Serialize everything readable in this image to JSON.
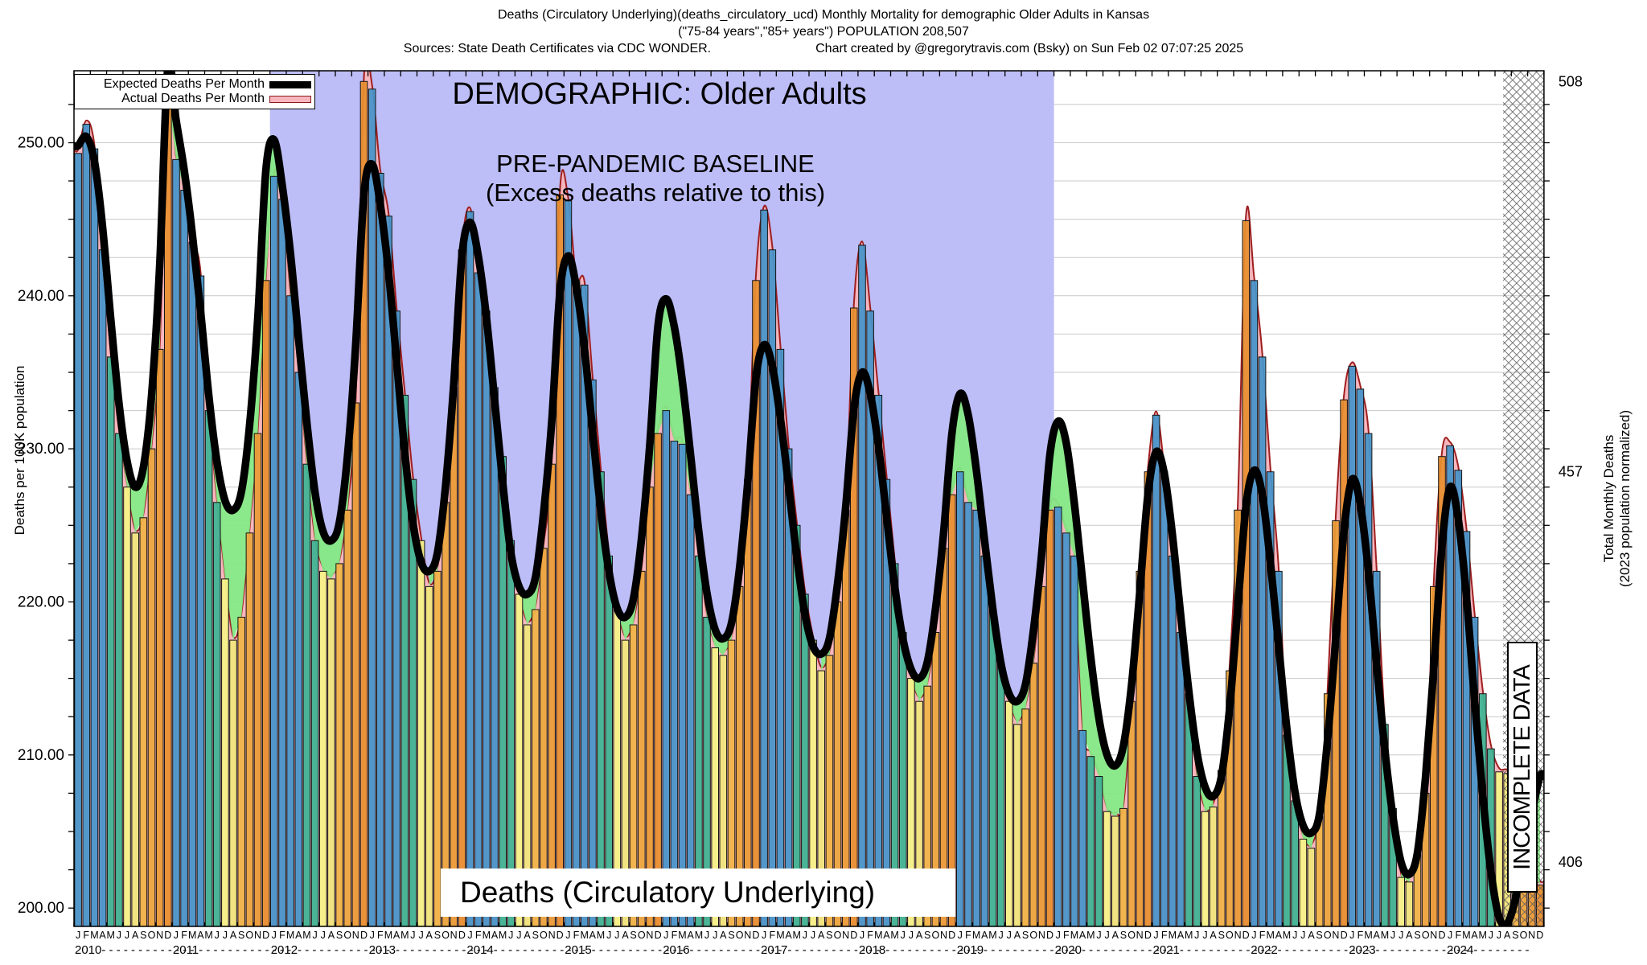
{
  "header": {
    "title_line1": "Deaths (Circulatory Underlying)(deaths_circulatory_ucd) Monthly Mortality for demographic Older Adults in Kansas",
    "title_line2": "(\"75-84 years\",\"85+ years\") POPULATION 208,507",
    "sources": "Sources: State Death Certificates via CDC WONDER.",
    "credit": "Chart created by @gregorytravis.com (Bsky) on Sun Feb 02 07:07:25 2025"
  },
  "legend": {
    "expected_label": "Expected Deaths Per Month",
    "actual_label": "Actual Deaths Per Month"
  },
  "annotations": {
    "demographic": "DEMOGRAPHIC: Older Adults",
    "baseline_title": "PRE-PANDEMIC BASELINE",
    "baseline_sub": "(Excess deaths relative to this)",
    "bottom_label": "Deaths (Circulatory Underlying)",
    "incomplete_label": "INCOMPLETE DATA"
  },
  "chart_data": {
    "type": "bar",
    "title": "Deaths (Circulatory Underlying) Monthly Mortality, Older Adults, Kansas",
    "ylabel": "Deaths per 100K population",
    "y2label_line1": "Total Monthly Deaths",
    "y2label_line2": "(2023 population normalized)",
    "ylim": [
      198.8,
      254.7
    ],
    "grid_step": 2.5,
    "y_ticks": [
      {
        "label": "250.00",
        "value": 250
      },
      {
        "label": "240.00",
        "value": 240
      },
      {
        "label": "230.00",
        "value": 230
      },
      {
        "label": "220.00",
        "value": 220
      },
      {
        "label": "210.00",
        "value": 210
      },
      {
        "label": "200.00",
        "value": 200
      }
    ],
    "y2_ticks": [
      {
        "label": "508",
        "value_left_axis": 254.0
      },
      {
        "label": "457",
        "value_left_axis": 228.5
      },
      {
        "label": "406",
        "value_left_axis": 203.0
      }
    ],
    "month_letters": "JFMAMJJASOND",
    "years": [
      2010,
      2011,
      2012,
      2013,
      2014,
      2015,
      2016,
      2017,
      2018,
      2019,
      2020,
      2021,
      2022,
      2023,
      2024
    ],
    "baseline_region": {
      "start_month_index": 24,
      "end_month_index": 120,
      "color": "#bdbdf7"
    },
    "incomplete_region": {
      "start_month_index": 175,
      "end_month_index": 180
    },
    "series": [
      {
        "name": "Actual Deaths Per Month",
        "by_year": {
          "2010": [
            249.3,
            251.2,
            249.6,
            243.0,
            236.0,
            231.0,
            227.5,
            224.5,
            225.5,
            230.0,
            236.5,
            253.0
          ],
          "2011": [
            248.9,
            246.9,
            243.5,
            241.3,
            232.5,
            226.5,
            221.5,
            217.5,
            219.0,
            224.5,
            231.0,
            241.0
          ],
          "2012": [
            247.8,
            246.3,
            240.0,
            235.0,
            229.0,
            224.0,
            222.0,
            221.5,
            222.5,
            226.0,
            233.0,
            254.0
          ],
          "2013": [
            253.5,
            248.0,
            245.2,
            239.0,
            233.5,
            228.0,
            224.0,
            221.0,
            222.0,
            226.5,
            234.0,
            243.0
          ],
          "2014": [
            245.5,
            241.5,
            239.0,
            234.0,
            229.5,
            224.0,
            220.5,
            218.5,
            219.5,
            223.5,
            229.0,
            246.6
          ],
          "2015": [
            246.2,
            241.0,
            240.7,
            234.5,
            228.5,
            223.0,
            219.5,
            217.5,
            218.5,
            222.0,
            227.5,
            231.0
          ],
          "2016": [
            232.5,
            230.5,
            230.3,
            227.0,
            223.0,
            219.0,
            217.0,
            216.5,
            217.5,
            221.0,
            228.0,
            241.0
          ],
          "2017": [
            245.6,
            243.0,
            236.5,
            230.0,
            225.0,
            220.5,
            217.5,
            215.5,
            216.5,
            220.0,
            226.0,
            239.2
          ],
          "2018": [
            243.3,
            239.0,
            233.5,
            228.0,
            222.5,
            218.0,
            215.0,
            213.5,
            214.5,
            218.0,
            223.5,
            227.0
          ],
          "2019": [
            228.5,
            226.5,
            226.0,
            223.0,
            219.5,
            216.0,
            213.5,
            212.0,
            213.0,
            216.0,
            221.0,
            226.0
          ],
          "2020": [
            226.2,
            224.5,
            223.0,
            211.6,
            209.9,
            208.6,
            206.3,
            206.0,
            206.5,
            213.5,
            222.0,
            228.5
          ],
          "2021": [
            232.2,
            228.5,
            223.0,
            218.0,
            214.0,
            208.6,
            206.3,
            206.6,
            209.0,
            215.5,
            226.0,
            244.9
          ],
          "2022": [
            241.0,
            236.0,
            228.5,
            222.0,
            211.3,
            207.0,
            204.5,
            203.9,
            206.0,
            214.0,
            225.3,
            233.2
          ],
          "2023": [
            235.4,
            233.9,
            231.0,
            222.0,
            212.0,
            206.5,
            202.0,
            201.7,
            203.5,
            207.5,
            221.0,
            229.5
          ],
          "2024": [
            230.2,
            228.6,
            224.6,
            219.0,
            214.0,
            210.4,
            208.9,
            208.8,
            208.3,
            203.3,
            202.4,
            201.5
          ]
        }
      },
      {
        "name": "Expected Deaths Per Month",
        "by_year": {
          "2010": [
            249.8,
            250.4,
            248.8,
            244.5,
            238.5,
            233.0,
            229.2,
            227.5,
            228.8,
            233.5,
            242.0,
            255.0
          ],
          "2011": [
            251.5,
            248.2,
            244.0,
            239.0,
            233.5,
            229.2,
            226.6,
            226.0,
            227.2,
            231.5,
            238.5,
            248.2
          ],
          "2012": [
            250.2,
            247.2,
            242.8,
            237.2,
            231.8,
            227.2,
            224.6,
            224.0,
            225.2,
            229.6,
            236.8,
            246.6
          ],
          "2013": [
            248.6,
            246.0,
            241.6,
            235.8,
            229.8,
            225.2,
            222.6,
            222.0,
            223.2,
            227.6,
            234.2,
            242.6
          ],
          "2014": [
            244.8,
            242.6,
            238.6,
            233.2,
            227.8,
            223.2,
            221.0,
            220.5,
            221.6,
            225.8,
            231.8,
            240.2
          ],
          "2015": [
            242.6,
            240.6,
            236.6,
            231.2,
            226.0,
            222.0,
            219.6,
            219.0,
            220.2,
            224.2,
            230.2,
            238.0
          ],
          "2016": [
            239.8,
            238.0,
            234.4,
            229.6,
            224.6,
            220.6,
            218.2,
            217.6,
            218.6,
            222.2,
            227.8,
            234.6
          ],
          "2017": [
            236.8,
            235.4,
            232.0,
            227.6,
            223.0,
            219.2,
            217.1,
            216.6,
            217.6,
            221.2,
            226.2,
            232.6
          ],
          "2018": [
            235.0,
            233.6,
            230.2,
            225.6,
            221.0,
            217.6,
            215.6,
            215.0,
            216.1,
            219.6,
            224.6,
            231.0
          ],
          "2019": [
            233.6,
            232.2,
            228.6,
            224.0,
            219.6,
            216.0,
            214.0,
            213.5,
            214.6,
            218.2,
            223.2,
            229.6
          ],
          "2020": [
            231.8,
            230.4,
            226.4,
            221.4,
            216.4,
            212.4,
            210.0,
            209.3,
            210.6,
            214.6,
            220.6,
            227.0
          ],
          "2021": [
            229.8,
            228.4,
            224.4,
            219.2,
            214.2,
            210.2,
            207.9,
            207.3,
            208.6,
            213.0,
            219.6,
            226.2
          ],
          "2022": [
            228.6,
            227.0,
            222.6,
            217.2,
            211.8,
            207.6,
            205.4,
            204.9,
            206.1,
            211.0,
            217.6,
            224.6
          ],
          "2023": [
            228.0,
            226.4,
            222.0,
            216.0,
            210.4,
            206.0,
            203.0,
            202.2,
            203.6,
            208.6,
            215.6,
            223.6
          ],
          "2024": [
            227.5,
            225.4,
            220.4,
            213.6,
            207.4,
            202.4,
            199.4,
            199.0,
            200.6,
            203.6,
            206.2,
            208.6
          ]
        }
      }
    ],
    "colors": {
      "expected_line": "#000000",
      "actual_fill": "#f7b6be",
      "actual_edge": "#9e1f1f",
      "deficit_green": "#85e885",
      "baseline_purple": "#bdbdf7",
      "grid": "#c8c8c8",
      "bar_months": [
        "#4694ca",
        "#4694ca",
        "#4694ca",
        "#4694ca",
        "#3db492",
        "#3db492",
        "#f5f387",
        "#f0e67c",
        "#f0b445",
        "#eca63c",
        "#e99b35",
        "#e78f2f"
      ]
    }
  }
}
